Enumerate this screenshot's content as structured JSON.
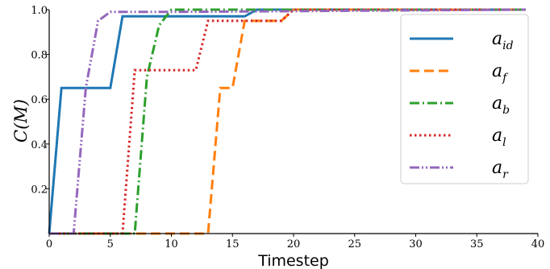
{
  "chart_data": {
    "type": "line",
    "title": "",
    "xlabel": "Timestep",
    "ylabel": "C(M)",
    "xlim": [
      0,
      40
    ],
    "ylim": [
      0,
      1.0
    ],
    "xticks": [
      0,
      5,
      10,
      15,
      20,
      25,
      30,
      35,
      40
    ],
    "yticks": [
      0.2,
      0.4,
      0.6,
      0.8,
      1.0
    ],
    "xtick_labels": [
      "0",
      "5",
      "10",
      "15",
      "20",
      "25",
      "30",
      "35",
      "40"
    ],
    "ytick_labels": [
      "0.2",
      "0.4",
      "0.6",
      "0.8",
      "1.0"
    ],
    "grid": false,
    "legend_position": "top-right",
    "series": [
      {
        "name": "a_id",
        "color": "#1f77b4",
        "dash": "solid",
        "x": [
          0,
          1,
          5,
          6,
          16,
          17,
          39
        ],
        "y": [
          0,
          0.65,
          0.65,
          0.97,
          0.97,
          1.0,
          1.0
        ]
      },
      {
        "name": "a_f",
        "color": "#ff7f0e",
        "dash": "dashed",
        "x": [
          0,
          13,
          14,
          15,
          16,
          17,
          19,
          20,
          39
        ],
        "y": [
          0,
          0,
          0.65,
          0.65,
          0.95,
          0.95,
          0.95,
          1.0,
          1.0
        ]
      },
      {
        "name": "a_b",
        "color": "#2ca02c",
        "dash": "dashdot",
        "x": [
          0,
          7,
          8,
          9,
          10,
          12,
          39
        ],
        "y": [
          0,
          0,
          0.7,
          0.93,
          1.0,
          1.0,
          1.0
        ]
      },
      {
        "name": "a_l",
        "color": "#d62728",
        "dash": "dotted",
        "x": [
          0,
          6,
          7,
          12,
          13,
          19,
          20,
          39
        ],
        "y": [
          0,
          0,
          0.73,
          0.73,
          0.95,
          0.95,
          1.0,
          1.0
        ]
      },
      {
        "name": "a_r",
        "color": "#9467bd",
        "dash": "dashdotdot",
        "x": [
          0,
          2,
          3,
          4,
          5,
          10,
          39
        ],
        "y": [
          0,
          0,
          0.65,
          0.95,
          0.99,
          0.99,
          1.0
        ]
      }
    ]
  },
  "legend": {
    "entries": [
      {
        "base": "a",
        "sub": "id"
      },
      {
        "base": "a",
        "sub": "f"
      },
      {
        "base": "a",
        "sub": "b"
      },
      {
        "base": "a",
        "sub": "l"
      },
      {
        "base": "a",
        "sub": "r"
      }
    ]
  }
}
